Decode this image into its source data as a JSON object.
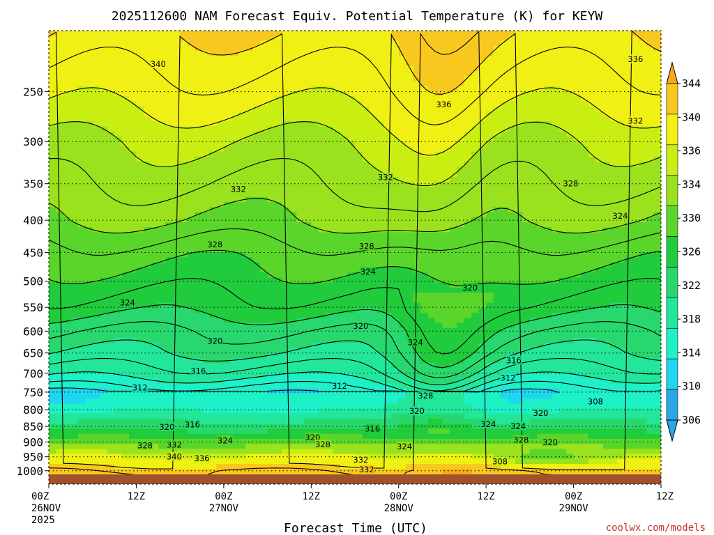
{
  "chart_data": {
    "type": "heatmap",
    "title": "2025112600 NAM Forecast Equiv. Potential Temperature (K) for KEYW",
    "xlabel": "Forecast Time (UTC)",
    "ylabel": "",
    "y_scale": "log",
    "y_reversed": true,
    "y_ticks": [
      250,
      300,
      350,
      400,
      450,
      500,
      550,
      600,
      650,
      700,
      750,
      800,
      850,
      900,
      950,
      1000
    ],
    "y_range": [
      1050,
      200
    ],
    "x_ticks": [
      {
        "hours": 0,
        "lines": [
          "00Z",
          "26NOV",
          "2025"
        ]
      },
      {
        "hours": 12,
        "lines": [
          "12Z"
        ]
      },
      {
        "hours": 24,
        "lines": [
          "00Z",
          "27NOV"
        ]
      },
      {
        "hours": 36,
        "lines": [
          "12Z"
        ]
      },
      {
        "hours": 48,
        "lines": [
          "00Z",
          "28NOV"
        ]
      },
      {
        "hours": 60,
        "lines": [
          "12Z"
        ]
      },
      {
        "hours": 72,
        "lines": [
          "00Z",
          "29NOV"
        ]
      },
      {
        "hours": 84,
        "lines": [
          "12Z"
        ]
      }
    ],
    "x_range": [
      0,
      84
    ],
    "colorbar": {
      "levels": [
        306,
        310,
        314,
        318,
        322,
        326,
        330,
        334,
        336,
        340,
        344
      ],
      "labels": [
        "306",
        "310",
        "314",
        "318",
        "322",
        "326",
        "330",
        "334",
        "336",
        "340",
        "344"
      ],
      "colors": [
        "#2aa8e6",
        "#1fd6f0",
        "#1ef0c8",
        "#22e69a",
        "#28d86e",
        "#20cc3c",
        "#5ad62a",
        "#9ae21e",
        "#c8ee12",
        "#f0f014",
        "#f8c81e",
        "#f5aa1e"
      ]
    },
    "ground_color": "#a0522d",
    "profile_levels_p": [
      1000,
      950,
      900,
      850,
      800,
      750,
      700,
      650,
      600,
      550,
      500,
      450,
      400,
      350,
      300,
      250,
      200
    ],
    "profile_theta_e": [
      342,
      336,
      328,
      320,
      314,
      311,
      315,
      318,
      320,
      323,
      325,
      327,
      330,
      332,
      334,
      337,
      340
    ],
    "contour_labels": [
      {
        "text": "340",
        "t": 15.0,
        "p": 226
      },
      {
        "text": "336",
        "t": 54.2,
        "p": 262
      },
      {
        "text": "336",
        "t": 80.5,
        "p": 222
      },
      {
        "text": "332",
        "t": 80.5,
        "p": 278
      },
      {
        "text": "332",
        "t": 26.0,
        "p": 357
      },
      {
        "text": "332",
        "t": 46.2,
        "p": 342
      },
      {
        "text": "328",
        "t": 71.6,
        "p": 350
      },
      {
        "text": "324",
        "t": 78.4,
        "p": 394
      },
      {
        "text": "328",
        "t": 22.8,
        "p": 437
      },
      {
        "text": "328",
        "t": 43.6,
        "p": 440
      },
      {
        "text": "324",
        "t": 43.8,
        "p": 483
      },
      {
        "text": "320",
        "t": 57.8,
        "p": 512
      },
      {
        "text": "324",
        "t": 10.8,
        "p": 541
      },
      {
        "text": "320",
        "t": 42.8,
        "p": 589
      },
      {
        "text": "320",
        "t": 22.8,
        "p": 622
      },
      {
        "text": "324",
        "t": 50.3,
        "p": 625
      },
      {
        "text": "316",
        "t": 63.8,
        "p": 668
      },
      {
        "text": "316",
        "t": 20.5,
        "p": 694
      },
      {
        "text": "312",
        "t": 63.0,
        "p": 712
      },
      {
        "text": "312",
        "t": 12.5,
        "p": 738
      },
      {
        "text": "312",
        "t": 39.9,
        "p": 733
      },
      {
        "text": "328",
        "t": 51.7,
        "p": 760
      },
      {
        "text": "308",
        "t": 75.0,
        "p": 776
      },
      {
        "text": "320",
        "t": 50.5,
        "p": 804
      },
      {
        "text": "320",
        "t": 67.5,
        "p": 810
      },
      {
        "text": "324",
        "t": 60.3,
        "p": 843
      },
      {
        "text": "324",
        "t": 64.4,
        "p": 850
      },
      {
        "text": "320",
        "t": 16.2,
        "p": 852
      },
      {
        "text": "316",
        "t": 19.7,
        "p": 845
      },
      {
        "text": "316",
        "t": 44.4,
        "p": 857
      },
      {
        "text": "320",
        "t": 36.2,
        "p": 885
      },
      {
        "text": "328",
        "t": 64.8,
        "p": 893
      },
      {
        "text": "320",
        "t": 68.8,
        "p": 901
      },
      {
        "text": "324",
        "t": 24.2,
        "p": 895
      },
      {
        "text": "328",
        "t": 37.6,
        "p": 908
      },
      {
        "text": "324",
        "t": 48.8,
        "p": 915
      },
      {
        "text": "328",
        "t": 13.2,
        "p": 911
      },
      {
        "text": "332",
        "t": 17.2,
        "p": 909
      },
      {
        "text": "340",
        "t": 17.2,
        "p": 950
      },
      {
        "text": "336",
        "t": 21.0,
        "p": 956
      },
      {
        "text": "332",
        "t": 42.8,
        "p": 960
      },
      {
        "text": "308",
        "t": 61.9,
        "p": 967
      },
      {
        "text": "332",
        "t": 43.6,
        "p": 995
      }
    ]
  },
  "credit": "coolwx.com/models"
}
